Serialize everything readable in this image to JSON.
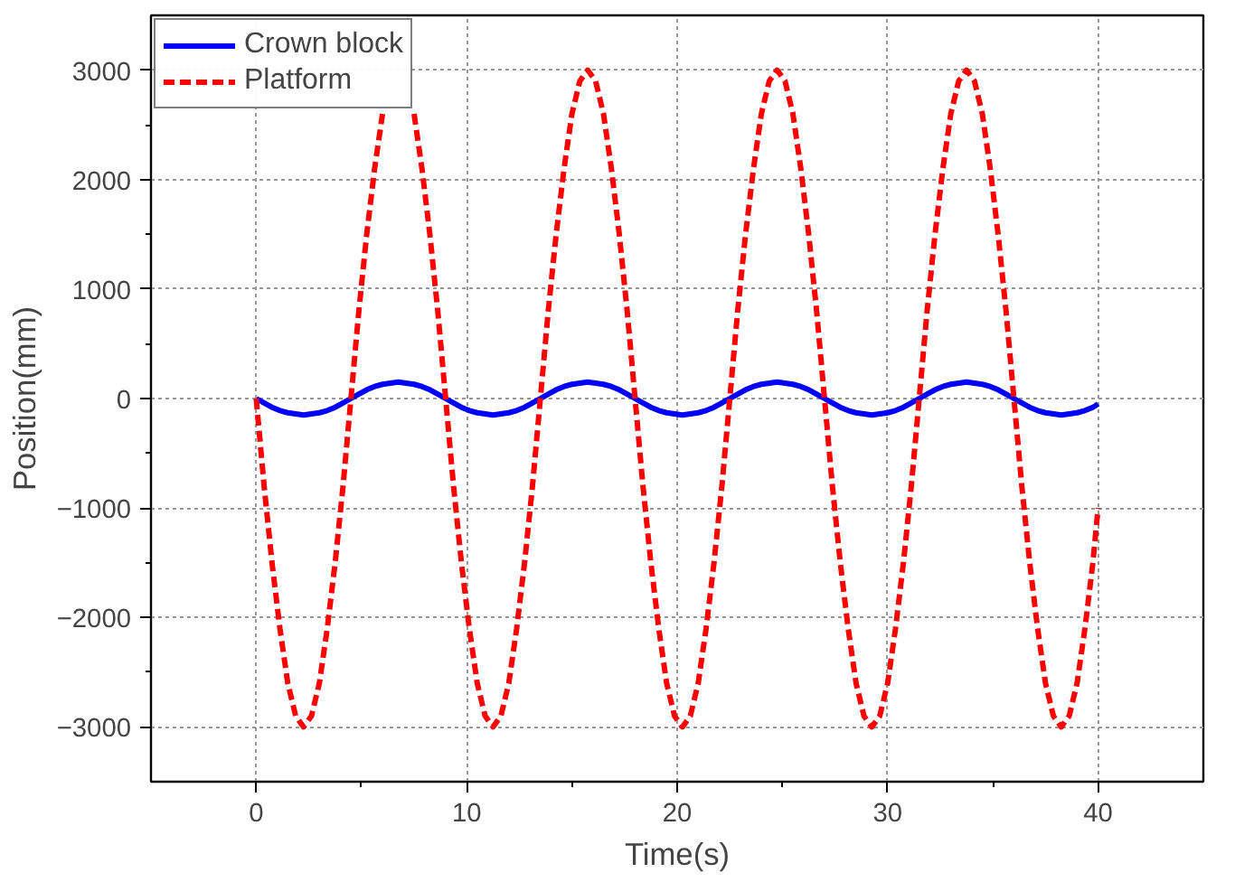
{
  "chart_data": {
    "type": "line",
    "xlabel": "Time(s)",
    "ylabel": "Position(mm)",
    "xlim": [
      -5,
      45
    ],
    "ylim": [
      -3500,
      3500
    ],
    "xticks": [
      0,
      10,
      20,
      30,
      40
    ],
    "yticks": [
      -3000,
      -2000,
      -1000,
      0,
      1000,
      2000,
      3000
    ],
    "grid": true,
    "legend": "top left",
    "x": [
      0,
      0.375,
      0.75,
      1.125,
      1.5,
      1.875,
      2.25,
      2.625,
      3,
      3.375,
      3.75,
      4.125,
      4.5,
      4.875,
      5.25,
      5.625,
      6,
      6.375,
      6.75,
      7.125,
      7.5,
      7.875,
      8.25,
      8.625,
      9,
      9.375,
      9.75,
      10.125,
      10.5,
      10.875,
      11.25,
      11.625,
      12,
      12.375,
      12.75,
      13.125,
      13.5,
      13.875,
      14.25,
      14.625,
      15,
      15.375,
      15.75,
      16.125,
      16.5,
      16.875,
      17.25,
      17.625,
      18,
      18.375,
      18.75,
      19.125,
      19.5,
      19.875,
      20.25,
      20.625,
      21,
      21.375,
      21.75,
      22.125,
      22.5,
      22.875,
      23.25,
      23.625,
      24,
      24.375,
      24.75,
      25.125,
      25.5,
      25.875,
      26.25,
      26.625,
      27,
      27.375,
      27.75,
      28.125,
      28.5,
      28.875,
      29.25,
      29.625,
      30,
      30.375,
      30.75,
      31.125,
      31.5,
      31.875,
      32.25,
      32.625,
      33,
      33.375,
      33.75,
      34.125,
      34.5,
      34.875,
      35.25,
      35.625,
      36,
      36.375,
      36.75,
      37.125,
      37.5,
      37.875,
      38.25,
      38.625,
      39,
      39.375,
      39.75,
      40
    ],
    "series": [
      {
        "name": "Crown block",
        "color": "#0000ff",
        "line_style": "solid",
        "values": [
          0,
          -40,
          -80,
          -110,
          -130,
          -140,
          -150,
          -140,
          -130,
          -110,
          -80,
          -40,
          0,
          40,
          80,
          110,
          130,
          140,
          150,
          140,
          130,
          110,
          80,
          40,
          0,
          -40,
          -80,
          -110,
          -130,
          -140,
          -150,
          -140,
          -130,
          -110,
          -80,
          -40,
          0,
          40,
          80,
          110,
          130,
          140,
          150,
          140,
          130,
          110,
          80,
          40,
          0,
          -40,
          -80,
          -110,
          -130,
          -140,
          -150,
          -140,
          -130,
          -110,
          -80,
          -40,
          0,
          40,
          80,
          110,
          130,
          140,
          150,
          140,
          130,
          110,
          80,
          40,
          0,
          -40,
          -80,
          -110,
          -130,
          -140,
          -150,
          -140,
          -130,
          -110,
          -80,
          -40,
          0,
          40,
          80,
          110,
          130,
          140,
          150,
          140,
          130,
          110,
          80,
          40,
          0,
          -40,
          -80,
          -110,
          -130,
          -140,
          -150,
          -140,
          -130,
          -110,
          -80,
          -50
        ]
      },
      {
        "name": "Platform",
        "color": "#ff0000",
        "line_style": "dashed",
        "values": [
          0,
          -800,
          -1500,
          -2100,
          -2600,
          -2900,
          -3000,
          -2900,
          -2600,
          -2100,
          -1500,
          -800,
          0,
          800,
          1500,
          2100,
          2600,
          null,
          null,
          null,
          2600,
          2100,
          1500,
          800,
          0,
          -800,
          -1500,
          -2100,
          -2600,
          -2900,
          -3000,
          -2900,
          -2600,
          -2100,
          -1500,
          -800,
          0,
          800,
          1500,
          2100,
          2600,
          2900,
          3000,
          2900,
          2600,
          2100,
          1500,
          800,
          0,
          -800,
          -1500,
          -2100,
          -2600,
          -2900,
          -3000,
          -2900,
          -2600,
          -2100,
          -1500,
          -800,
          0,
          800,
          1500,
          2100,
          2600,
          2900,
          3000,
          2900,
          2600,
          2100,
          1500,
          800,
          0,
          -800,
          -1500,
          -2100,
          -2600,
          -2900,
          -3000,
          -2900,
          -2600,
          -2100,
          -1500,
          -800,
          0,
          800,
          1500,
          2100,
          2600,
          2900,
          3000,
          2900,
          2600,
          2100,
          1500,
          800,
          0,
          -800,
          -1500,
          -2100,
          -2600,
          -2900,
          -3000,
          -2900,
          -2600,
          -2100,
          -1500,
          -1000
        ]
      }
    ]
  }
}
